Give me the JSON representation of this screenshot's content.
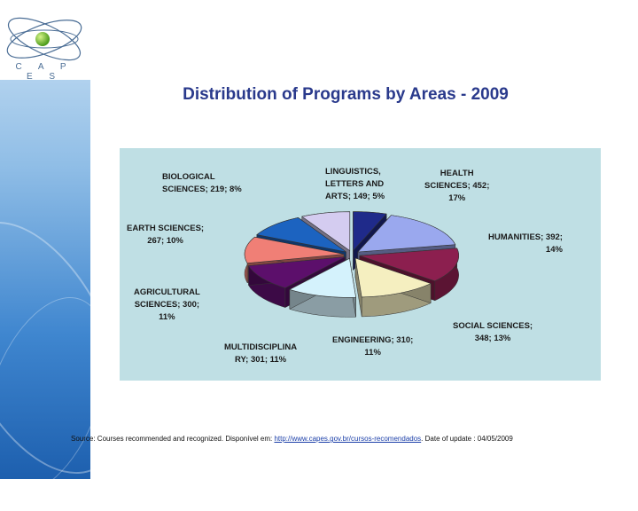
{
  "logo": {
    "text": "C A P E S"
  },
  "title": "Distribution of Programs by Areas -  2009",
  "chart_data": {
    "type": "pie",
    "title": "Distribution of Programs by Areas -  2009",
    "slices": [
      {
        "id": "linguistics",
        "label": "LINGUISTICS,\nLETTERS AND\nARTS; 149; 5%",
        "value": 149,
        "percent": 5,
        "color": "#1f2a8a"
      },
      {
        "id": "health",
        "label": "HEALTH\nSCIENCES; 452;\n17%",
        "value": 452,
        "percent": 17,
        "color": "#9aa8ee"
      },
      {
        "id": "humanities",
        "label": "HUMANITIES; 392;\n14%",
        "value": 392,
        "percent": 14,
        "color": "#8c1f4f"
      },
      {
        "id": "social",
        "label": "SOCIAL SCIENCES;\n348; 13%",
        "value": 348,
        "percent": 13,
        "color": "#f5efc0"
      },
      {
        "id": "engineering",
        "label": "ENGINEERING; 310;\n11%",
        "value": 310,
        "percent": 11,
        "color": "#d4f2fc"
      },
      {
        "id": "multidisciplinary",
        "label": "MULTIDISCIPLINA\nRY; 301; 11%",
        "value": 301,
        "percent": 11,
        "color": "#5c0f6b"
      },
      {
        "id": "agricultural",
        "label": "AGRICULTURAL\nSCIENCES; 300;\n11%",
        "value": 300,
        "percent": 11,
        "color": "#f07f76"
      },
      {
        "id": "earth",
        "label": "EARTH SCIENCES;\n267; 10%",
        "value": 267,
        "percent": 10,
        "color": "#1c63c0"
      },
      {
        "id": "biological",
        "label": "BIOLOGICAL\nSCIENCES; 219; 8%",
        "value": 219,
        "percent": 8,
        "color": "#d4ccf0"
      }
    ]
  },
  "source": {
    "prefix": "Source: Courses recommended and recognized. Disponível em: ",
    "link": "http://www.capes.gov.br/cursos-recomendados",
    "suffix": ". Date of update : 04/05/2009"
  }
}
